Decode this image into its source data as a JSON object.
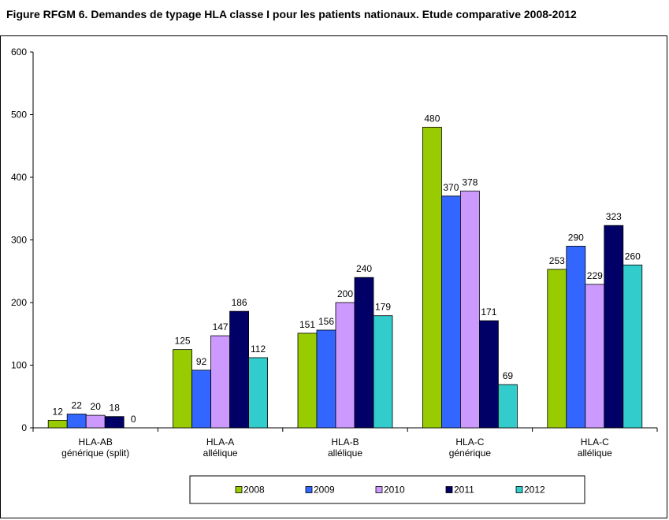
{
  "chart_data": {
    "type": "bar",
    "title": "Figure RFGM 6. Demandes de typage HLA classe I pour les patients nationaux. Etude comparative 2008-2012",
    "categories": [
      [
        "HLA-AB",
        "générique (split)"
      ],
      [
        "HLA-A",
        "allélique"
      ],
      [
        "HLA-B",
        "allélique"
      ],
      [
        "HLA-C",
        "générique"
      ],
      [
        "HLA-C",
        "allélique"
      ]
    ],
    "series": [
      {
        "name": "2008",
        "color": "#99cc00",
        "values": [
          12,
          125,
          151,
          480,
          253
        ]
      },
      {
        "name": "2009",
        "color": "#3366ff",
        "values": [
          22,
          92,
          156,
          370,
          290
        ]
      },
      {
        "name": "2010",
        "color": "#cc99ff",
        "values": [
          20,
          147,
          200,
          378,
          229
        ]
      },
      {
        "name": "2011",
        "color": "#000066",
        "values": [
          18,
          186,
          240,
          171,
          323
        ]
      },
      {
        "name": "2012",
        "color": "#33cccc",
        "values": [
          0,
          112,
          179,
          69,
          260
        ]
      }
    ],
    "ylim": [
      0,
      600
    ],
    "yticks": [
      0,
      100,
      200,
      300,
      400,
      500,
      600
    ],
    "xlabel": "",
    "ylabel": "",
    "legend_position": "bottom",
    "grid": false
  }
}
